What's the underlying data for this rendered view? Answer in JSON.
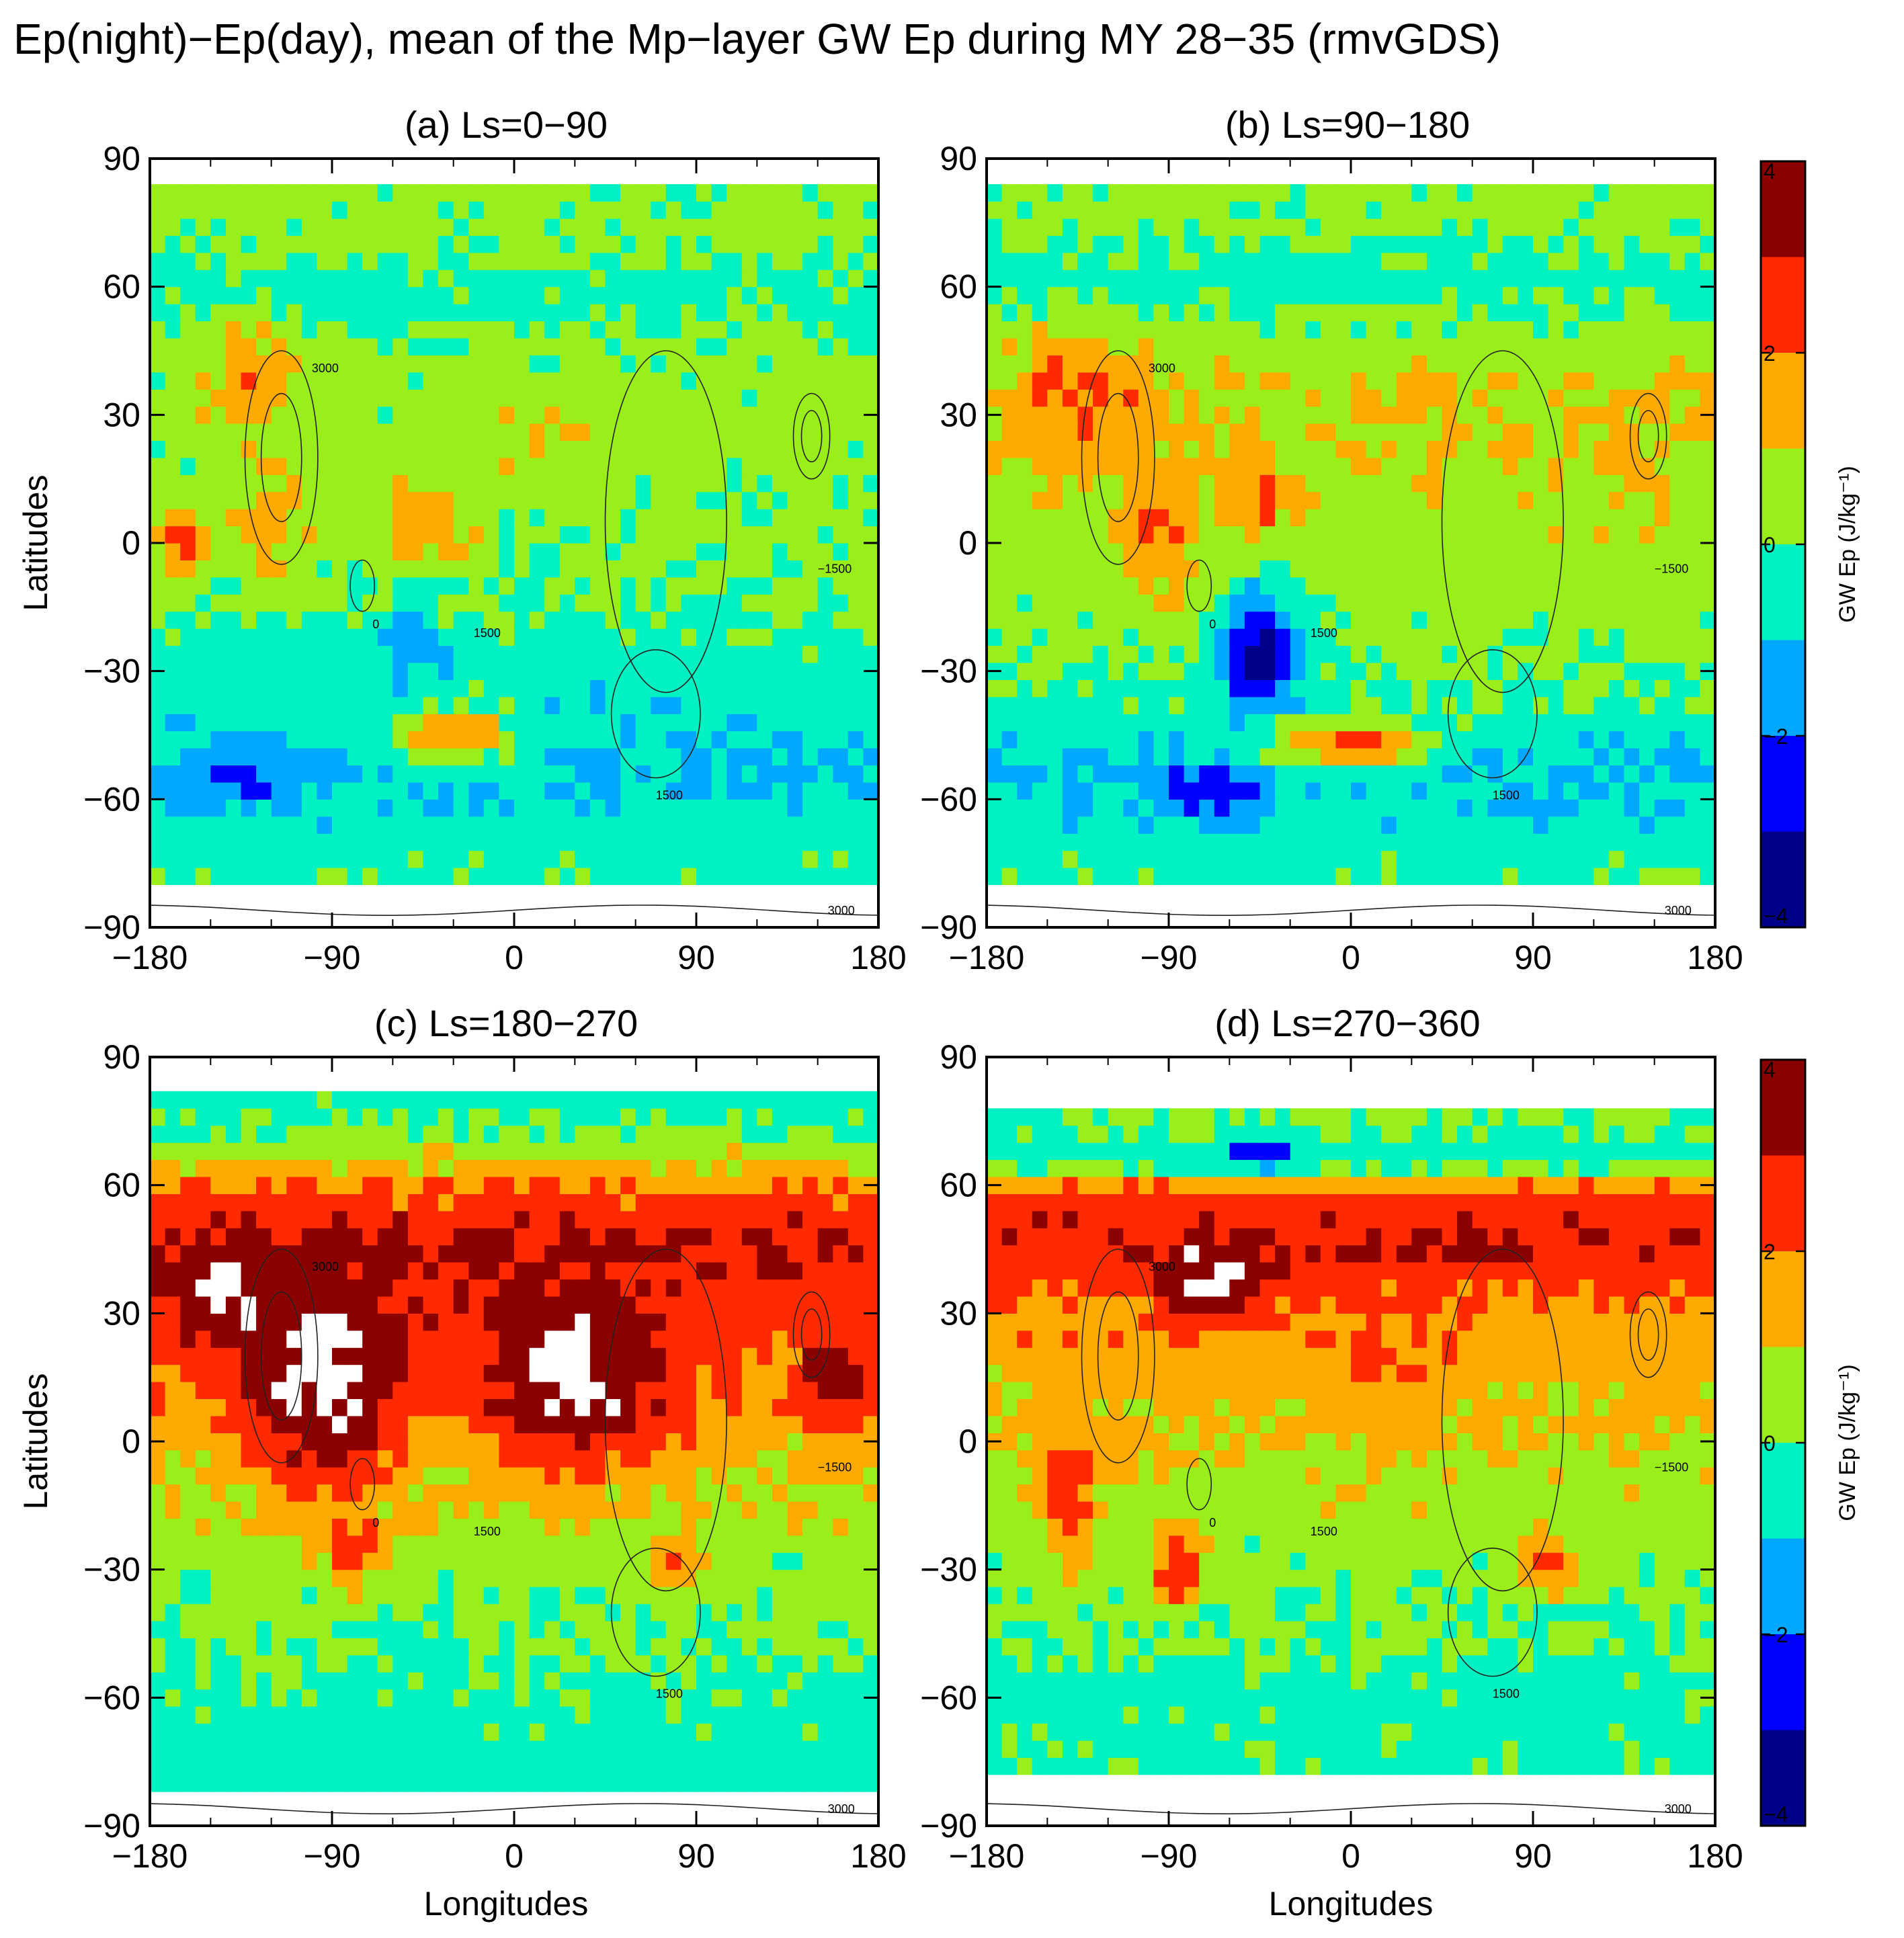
{
  "figure": {
    "title": "Ep(night)−Ep(day), mean of the Mp−layer GW Ep during MY 28−35 (rmvGDS)"
  },
  "chart_data": [
    {
      "type": "heatmap",
      "title": "(a) Ls=0−90",
      "xlabel": "",
      "ylabel": "Latitudes",
      "xlim": [
        -180,
        180
      ],
      "ylim": [
        -90,
        90
      ],
      "xticks": [
        "−180",
        "−90",
        "0",
        "90",
        "180"
      ],
      "yticks": [
        "90",
        "60",
        "30",
        "0",
        "−30",
        "−60",
        "−90"
      ],
      "data_lat_range": [
        -80,
        82
      ],
      "bands": [
        {
          "lat": 70,
          "value": 0.3
        },
        {
          "lat": 60,
          "value": -0.4
        },
        {
          "lat": 45,
          "value": 0.3
        },
        {
          "lat": 30,
          "value": 0.4
        },
        {
          "lat": 15,
          "value": 0.3
        },
        {
          "lat": 0,
          "value": 0.2
        },
        {
          "lat": -15,
          "value": 0.0
        },
        {
          "lat": -30,
          "value": -0.5
        },
        {
          "lat": -45,
          "value": -0.8
        },
        {
          "lat": -55,
          "value": -1.2
        },
        {
          "lat": -65,
          "value": -0.6
        },
        {
          "lat": -75,
          "value": -0.3
        }
      ],
      "features": [
        {
          "lon": -130,
          "lat": 38,
          "rlon": 22,
          "rlat": 12,
          "value": 1.9
        },
        {
          "lon": -165,
          "lat": 0,
          "rlon": 12,
          "rlat": 8,
          "value": 2.2
        },
        {
          "lon": -120,
          "lat": 5,
          "rlon": 20,
          "rlat": 15,
          "value": 1.3
        },
        {
          "lon": -40,
          "lat": 5,
          "rlon": 20,
          "rlat": 12,
          "value": 1.8
        },
        {
          "lon": -30,
          "lat": -45,
          "rlon": 30,
          "rlat": 7,
          "value": 2.1
        },
        {
          "lon": -50,
          "lat": -25,
          "rlon": 18,
          "rlat": 8,
          "value": -1.6
        },
        {
          "lon": -140,
          "lat": -55,
          "rlon": 30,
          "rlat": 7,
          "value": -2.1
        },
        {
          "lon": 10,
          "lat": 25,
          "rlon": 40,
          "rlat": 10,
          "value": 0.8
        }
      ]
    },
    {
      "type": "heatmap",
      "title": "(b) Ls=90−180",
      "xlabel": "",
      "ylabel": "",
      "xlim": [
        -180,
        180
      ],
      "ylim": [
        -90,
        90
      ],
      "xticks": [
        "−180",
        "−90",
        "0",
        "90",
        "180"
      ],
      "yticks": [
        "90",
        "60",
        "30",
        "0",
        "−30",
        "−60",
        "−90"
      ],
      "data_lat_range": [
        -80,
        82
      ],
      "bands": [
        {
          "lat": 75,
          "value": 0.3
        },
        {
          "lat": 62,
          "value": -0.5
        },
        {
          "lat": 50,
          "value": 0.3
        },
        {
          "lat": 35,
          "value": 1.0
        },
        {
          "lat": 20,
          "value": 0.8
        },
        {
          "lat": 5,
          "value": 0.6
        },
        {
          "lat": -10,
          "value": 0.5
        },
        {
          "lat": -25,
          "value": 0.2
        },
        {
          "lat": -40,
          "value": -0.3
        },
        {
          "lat": -52,
          "value": -1.1
        },
        {
          "lat": -65,
          "value": -0.7
        },
        {
          "lat": -75,
          "value": -0.3
        }
      ],
      "features": [
        {
          "lon": -135,
          "lat": 35,
          "rlon": 30,
          "rlat": 15,
          "value": 2.3
        },
        {
          "lon": -95,
          "lat": 5,
          "rlon": 20,
          "rlat": 15,
          "value": 2.3
        },
        {
          "lon": -45,
          "lat": -25,
          "rlon": 22,
          "rlat": 14,
          "value": -3.5
        },
        {
          "lon": -70,
          "lat": -58,
          "rlon": 28,
          "rlat": 6,
          "value": -2.8
        },
        {
          "lon": 0,
          "lat": -47,
          "rlon": 40,
          "rlat": 6,
          "value": 2.1
        },
        {
          "lon": -45,
          "lat": 10,
          "rlon": 15,
          "rlat": 10,
          "value": 2.0
        },
        {
          "lon": 140,
          "lat": 20,
          "rlon": 12,
          "rlat": 10,
          "value": 1.5
        }
      ]
    },
    {
      "type": "heatmap",
      "title": "(c) Ls=180−270",
      "xlabel": "",
      "ylabel": "Latitudes",
      "xlim": [
        -180,
        180
      ],
      "ylim": [
        -90,
        90
      ],
      "xticks": [
        "−180",
        "−90",
        "0",
        "90",
        "180"
      ],
      "yticks": [
        "90",
        "60",
        "30",
        "0",
        "−30",
        "−60",
        "−90"
      ],
      "data_lat_range": [
        -82,
        82
      ],
      "bands": [
        {
          "lat": 78,
          "value": -0.4
        },
        {
          "lat": 68,
          "value": 0.6
        },
        {
          "lat": 58,
          "value": 2.2
        },
        {
          "lat": 45,
          "value": 3.0
        },
        {
          "lat": 30,
          "value": 2.4
        },
        {
          "lat": 15,
          "value": 1.8
        },
        {
          "lat": 0,
          "value": 1.2
        },
        {
          "lat": -15,
          "value": 0.8
        },
        {
          "lat": -30,
          "value": 0.3
        },
        {
          "lat": -45,
          "value": 0.2
        },
        {
          "lat": -60,
          "value": -0.3
        },
        {
          "lat": -75,
          "value": -0.5
        }
      ],
      "features": [
        {
          "lon": -95,
          "lat": 15,
          "rlon": 40,
          "rlat": 25,
          "value": 4.6
        },
        {
          "lon": 30,
          "lat": 15,
          "rlon": 45,
          "rlat": 20,
          "value": 4.6
        },
        {
          "lon": -140,
          "lat": 35,
          "rlon": 25,
          "rlat": 10,
          "value": 4.6
        },
        {
          "lon": -80,
          "lat": -25,
          "rlon": 15,
          "rlat": 8,
          "value": 2.8
        },
        {
          "lon": 160,
          "lat": 15,
          "rlon": 20,
          "rlat": 12,
          "value": 3.5
        },
        {
          "lon": 80,
          "lat": -28,
          "rlon": 12,
          "rlat": 6,
          "value": 2.4
        }
      ]
    },
    {
      "type": "heatmap",
      "title": "(d) Ls=270−360",
      "xlabel": "",
      "ylabel": "",
      "xlim": [
        -180,
        180
      ],
      "ylim": [
        -90,
        90
      ],
      "xticks": [
        "−180",
        "−90",
        "0",
        "90",
        "180"
      ],
      "yticks": [
        "90",
        "60",
        "30",
        "0",
        "−30",
        "−60",
        "−90"
      ],
      "data_lat_range": [
        -78,
        78
      ],
      "bands": [
        {
          "lat": 74,
          "value": 0.2
        },
        {
          "lat": 66,
          "value": -0.6
        },
        {
          "lat": 58,
          "value": 2.4
        },
        {
          "lat": 45,
          "value": 2.9
        },
        {
          "lat": 30,
          "value": 1.8
        },
        {
          "lat": 15,
          "value": 1.4
        },
        {
          "lat": 0,
          "value": 1.0
        },
        {
          "lat": -15,
          "value": 0.6
        },
        {
          "lat": -30,
          "value": 0.3
        },
        {
          "lat": -45,
          "value": 0.1
        },
        {
          "lat": -60,
          "value": -0.4
        },
        {
          "lat": -72,
          "value": -0.3
        }
      ],
      "features": [
        {
          "lon": -70,
          "lat": 38,
          "rlon": 25,
          "rlat": 10,
          "value": 4.6
        },
        {
          "lon": -45,
          "lat": 68,
          "rlon": 18,
          "rlat": 4,
          "value": -2.5
        },
        {
          "lon": -85,
          "lat": -30,
          "rlon": 12,
          "rlat": 8,
          "value": 3.2
        },
        {
          "lon": 95,
          "lat": -28,
          "rlon": 15,
          "rlat": 6,
          "value": 2.9
        },
        {
          "lon": -140,
          "lat": -10,
          "rlon": 15,
          "rlat": 20,
          "value": 2.5
        },
        {
          "lon": 20,
          "lat": 20,
          "rlon": 30,
          "rlat": 15,
          "value": 2.2
        }
      ]
    }
  ],
  "colorbars": [
    {
      "label": "GW Ep (J/kg⁻¹)",
      "ticks": [
        "4",
        "2",
        "0",
        "−2",
        "−4"
      ],
      "levels": [
        4,
        3,
        2,
        1,
        0,
        -1,
        -2,
        -3,
        -4
      ],
      "colors": [
        "#8b0000",
        "#ff2a00",
        "#ffaa00",
        "#9aef1a",
        "#00f2c2",
        "#00a8ff",
        "#0000ff",
        "#00008b"
      ]
    },
    {
      "label": "GW Ep (J/kg⁻¹)",
      "ticks": [
        "4",
        "2",
        "0",
        "−2",
        "−4"
      ],
      "levels": [
        4,
        3,
        2,
        1,
        0,
        -1,
        -2,
        -3,
        -4
      ],
      "colors": [
        "#8b0000",
        "#ff2a00",
        "#ffaa00",
        "#9aef1a",
        "#00f2c2",
        "#00a8ff",
        "#0000ff",
        "#00008b"
      ]
    }
  ],
  "shared_xlabel": "Longitudes",
  "contour_labels": [
    "1500",
    "3000",
    "0",
    "−1500"
  ]
}
